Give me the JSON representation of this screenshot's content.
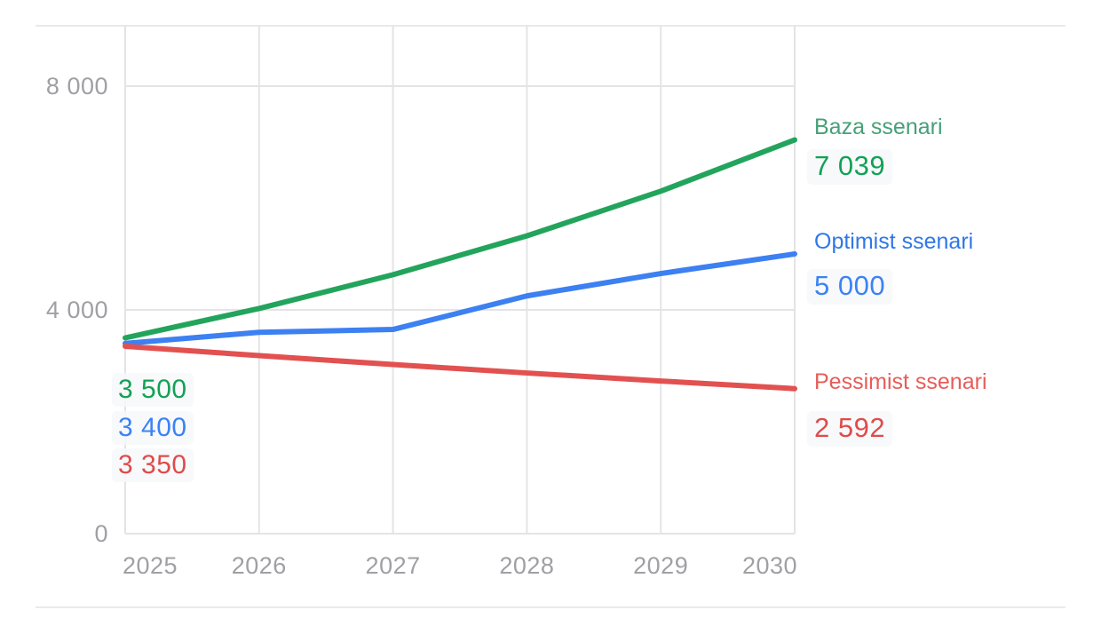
{
  "chart_data": {
    "type": "line",
    "x": [
      2025,
      2026,
      2027,
      2028,
      2029,
      2030
    ],
    "x_tick_labels": [
      "2025",
      "2026",
      "2027",
      "2028",
      "2029",
      "2030"
    ],
    "y_ticks": [
      {
        "value": 0,
        "label": "0"
      },
      {
        "value": 4000,
        "label": "4 000"
      },
      {
        "value": 8000,
        "label": "8 000"
      }
    ],
    "ylim": [
      0,
      9100
    ],
    "grid": true,
    "legend_position": "right-inline",
    "series": [
      {
        "name": "Baza ssenari",
        "values": [
          3500,
          4025,
          4629,
          5323,
          6122,
          7039
        ],
        "start_label": "3 500",
        "end_label": "7 039",
        "line_color": "#23a45c",
        "name_color": "#47a077",
        "value_color": "#12a155"
      },
      {
        "name": "Optimist ssenari",
        "values": [
          3400,
          3600,
          3650,
          4250,
          4650,
          5000
        ],
        "start_label": "3 400",
        "end_label": "5 000",
        "line_color": "#3c80f2",
        "name_color": "#2f77e6",
        "value_color": "#3b82f6"
      },
      {
        "name": "Pessimist ssenari",
        "values": [
          3350,
          3183,
          3023,
          2872,
          2729,
          2592
        ],
        "start_label": "3 350",
        "end_label": "2 592",
        "line_color": "#e25150",
        "name_color": "#e65d59",
        "value_color": "#e04b4a"
      }
    ],
    "colors": {
      "gridline": "#e4e4e6",
      "axis_text": "#a0a0a4",
      "divider": "#e9e9eb",
      "background": "#ffffff"
    }
  }
}
